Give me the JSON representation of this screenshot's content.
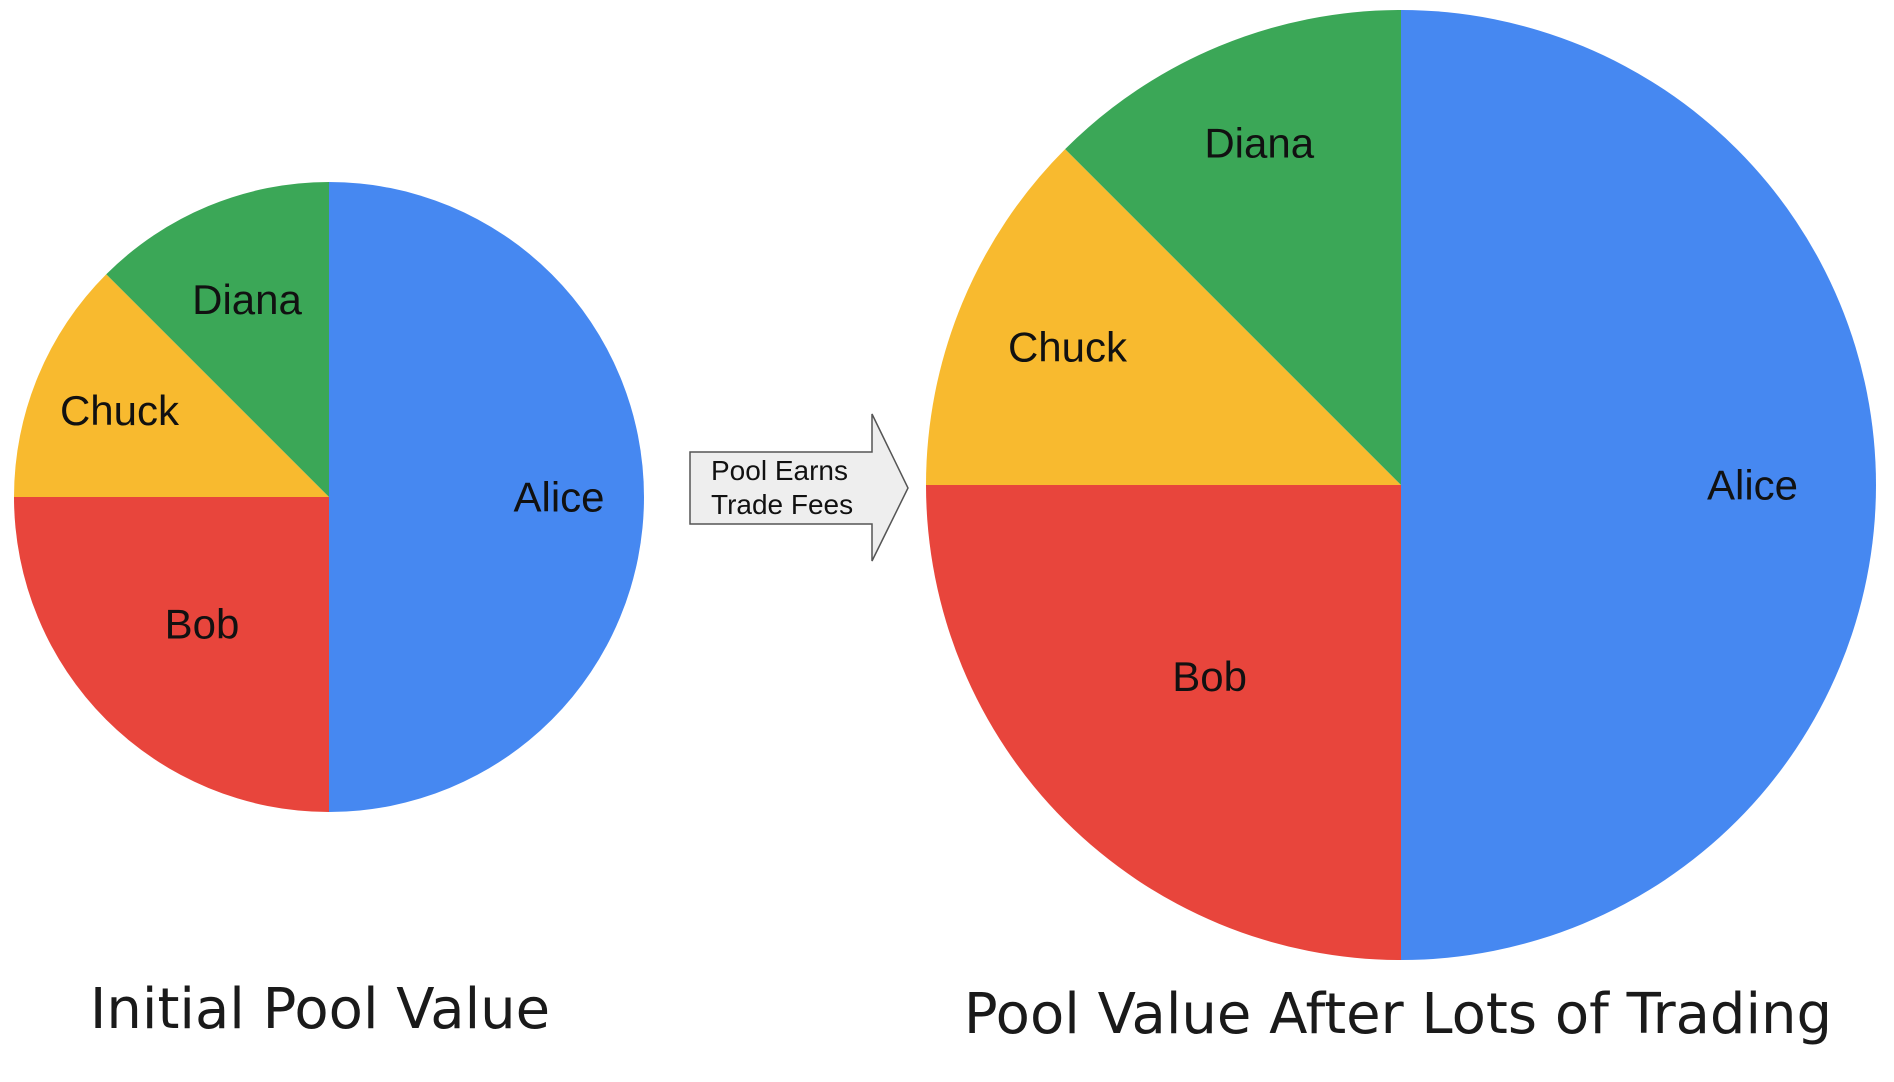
{
  "colors": {
    "alice": "#4688F1",
    "bob": "#E8453C",
    "chuck": "#F8BA2F",
    "diana": "#3BA757",
    "arrow_fill": "#eeeeee",
    "arrow_stroke": "#555555"
  },
  "arrow": {
    "line1": "Pool Earns",
    "line2": "Trade Fees"
  },
  "chart_data": [
    {
      "type": "pie",
      "caption": "Initial Pool Value",
      "slices": [
        {
          "label": "Alice",
          "value": 50,
          "color_key": "alice"
        },
        {
          "label": "Bob",
          "value": 25,
          "color_key": "bob"
        },
        {
          "label": "Chuck",
          "value": 12.5,
          "color_key": "chuck"
        },
        {
          "label": "Diana",
          "value": 12.5,
          "color_key": "diana"
        }
      ]
    },
    {
      "type": "pie",
      "caption": "Pool Value After Lots of Trading",
      "slices": [
        {
          "label": "Alice",
          "value": 50,
          "color_key": "alice"
        },
        {
          "label": "Bob",
          "value": 25,
          "color_key": "bob"
        },
        {
          "label": "Chuck",
          "value": 12.5,
          "color_key": "chuck"
        },
        {
          "label": "Diana",
          "value": 12.5,
          "color_key": "diana"
        }
      ]
    }
  ]
}
